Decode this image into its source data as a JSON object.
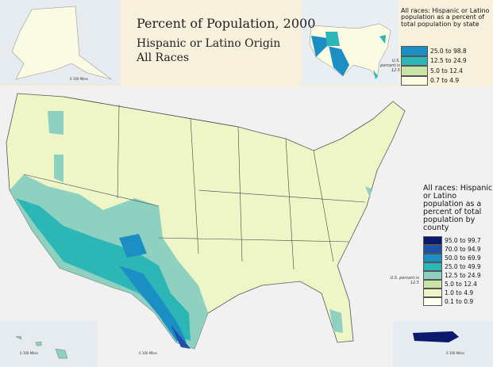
{
  "header": {
    "title": "Percent of Population, 2000",
    "subtitle": "Hispanic or Latino Origin",
    "subtitle2": "All Races"
  },
  "state_legend": {
    "title": "All races: Hispanic or Latino population as a percent of total population by state",
    "us_note": "U.S. percent is 12.5",
    "items": [
      {
        "label": "25.0 to 98.8",
        "color": "#1b8ec4"
      },
      {
        "label": "12.5 to 24.9",
        "color": "#2cb6b6"
      },
      {
        "label": "5.0 to 12.4",
        "color": "#c9e4a6"
      },
      {
        "label": "0.7 to 4.9",
        "color": "#fbfbe4"
      }
    ]
  },
  "county_legend": {
    "title": "All races: Hispanic or Latino population as a percent of total population by county",
    "us_note": "U.S. percent is 12.5",
    "items": [
      {
        "label": "95.0 to 99.7",
        "color": "#0a1a6c"
      },
      {
        "label": "70.0 to 94.9",
        "color": "#1d52a8"
      },
      {
        "label": "50.0 to 69.9",
        "color": "#1b8ec4"
      },
      {
        "label": "25.0 to 49.9",
        "color": "#2cb6b6"
      },
      {
        "label": "12.5 to 24.9",
        "color": "#8fd1c1"
      },
      {
        "label": "5.0 to 12.4",
        "color": "#c9e4a6"
      },
      {
        "label": "1.0 to 4.9",
        "color": "#eef5c6"
      },
      {
        "label": "0.1 to 0.9",
        "color": "#fdfdee"
      }
    ]
  },
  "insets": {
    "alaska_scale": "0 100 Miles",
    "hawaii_scale": "0 100 Miles",
    "texas_scale": "0 100 Miles",
    "puerto_rico_scale": "0 100 Miles"
  }
}
